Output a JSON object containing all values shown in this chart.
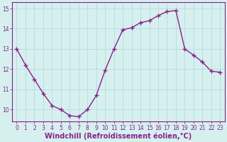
{
  "x": [
    0,
    1,
    2,
    3,
    4,
    5,
    6,
    7,
    8,
    9,
    10,
    11,
    12,
    13,
    14,
    15,
    16,
    17,
    18,
    19,
    20,
    21,
    22,
    23
  ],
  "y": [
    13.0,
    12.2,
    11.5,
    10.8,
    10.2,
    10.0,
    9.7,
    9.65,
    10.0,
    10.7,
    11.95,
    13.0,
    13.95,
    14.05,
    14.3,
    14.4,
    14.65,
    14.85,
    14.9,
    13.0,
    12.7,
    12.35,
    11.9,
    11.85
  ],
  "line_color": "#882288",
  "marker": "+",
  "marker_size": 4,
  "bg_color": "#d6f0f0",
  "grid_color": "#b8dada",
  "xlabel": "Windchill (Refroidissement éolien,°C)",
  "xlabel_fontsize": 7,
  "ylabel_ticks": [
    10,
    11,
    12,
    13,
    14,
    15
  ],
  "xticks": [
    0,
    1,
    2,
    3,
    4,
    5,
    6,
    7,
    8,
    9,
    10,
    11,
    12,
    13,
    14,
    15,
    16,
    17,
    18,
    19,
    20,
    21,
    22,
    23
  ],
  "xlim": [
    -0.5,
    23.5
  ],
  "ylim": [
    9.4,
    15.3
  ],
  "tick_fontsize": 5.5,
  "line_width": 1.0,
  "spine_color": "#882288"
}
